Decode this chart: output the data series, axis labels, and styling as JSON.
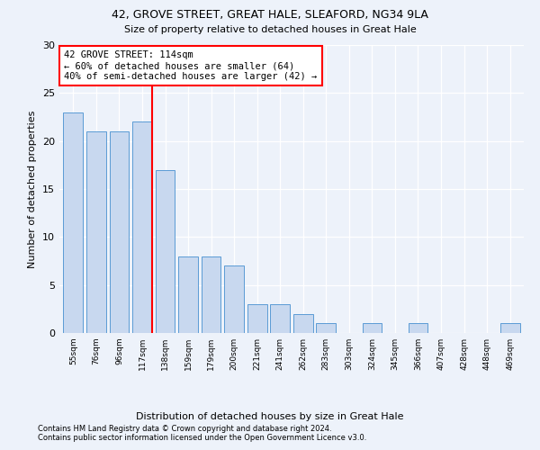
{
  "title1": "42, GROVE STREET, GREAT HALE, SLEAFORD, NG34 9LA",
  "title2": "Size of property relative to detached houses in Great Hale",
  "xlabel": "Distribution of detached houses by size in Great Hale",
  "ylabel": "Number of detached properties",
  "categories": [
    "55sqm",
    "76sqm",
    "96sqm",
    "117sqm",
    "138sqm",
    "159sqm",
    "179sqm",
    "200sqm",
    "221sqm",
    "241sqm",
    "262sqm",
    "283sqm",
    "303sqm",
    "324sqm",
    "345sqm",
    "366sqm",
    "407sqm",
    "428sqm",
    "448sqm",
    "469sqm"
  ],
  "values": [
    23,
    21,
    21,
    22,
    17,
    8,
    8,
    7,
    3,
    3,
    2,
    1,
    0,
    1,
    0,
    1,
    0,
    0,
    0,
    1
  ],
  "bar_color": "#c8d8ef",
  "bar_edge_color": "#5b9bd5",
  "line_x_index": 3,
  "line_color": "red",
  "annotation_title": "42 GROVE STREET: 114sqm",
  "annotation_line1": "← 60% of detached houses are smaller (64)",
  "annotation_line2": "40% of semi-detached houses are larger (42) →",
  "annotation_box_color": "white",
  "annotation_box_edge": "red",
  "ylim": [
    0,
    30
  ],
  "yticks": [
    0,
    5,
    10,
    15,
    20,
    25,
    30
  ],
  "footer1": "Contains HM Land Registry data © Crown copyright and database right 2024.",
  "footer2": "Contains public sector information licensed under the Open Government Licence v3.0.",
  "background_color": "#edf2fa"
}
